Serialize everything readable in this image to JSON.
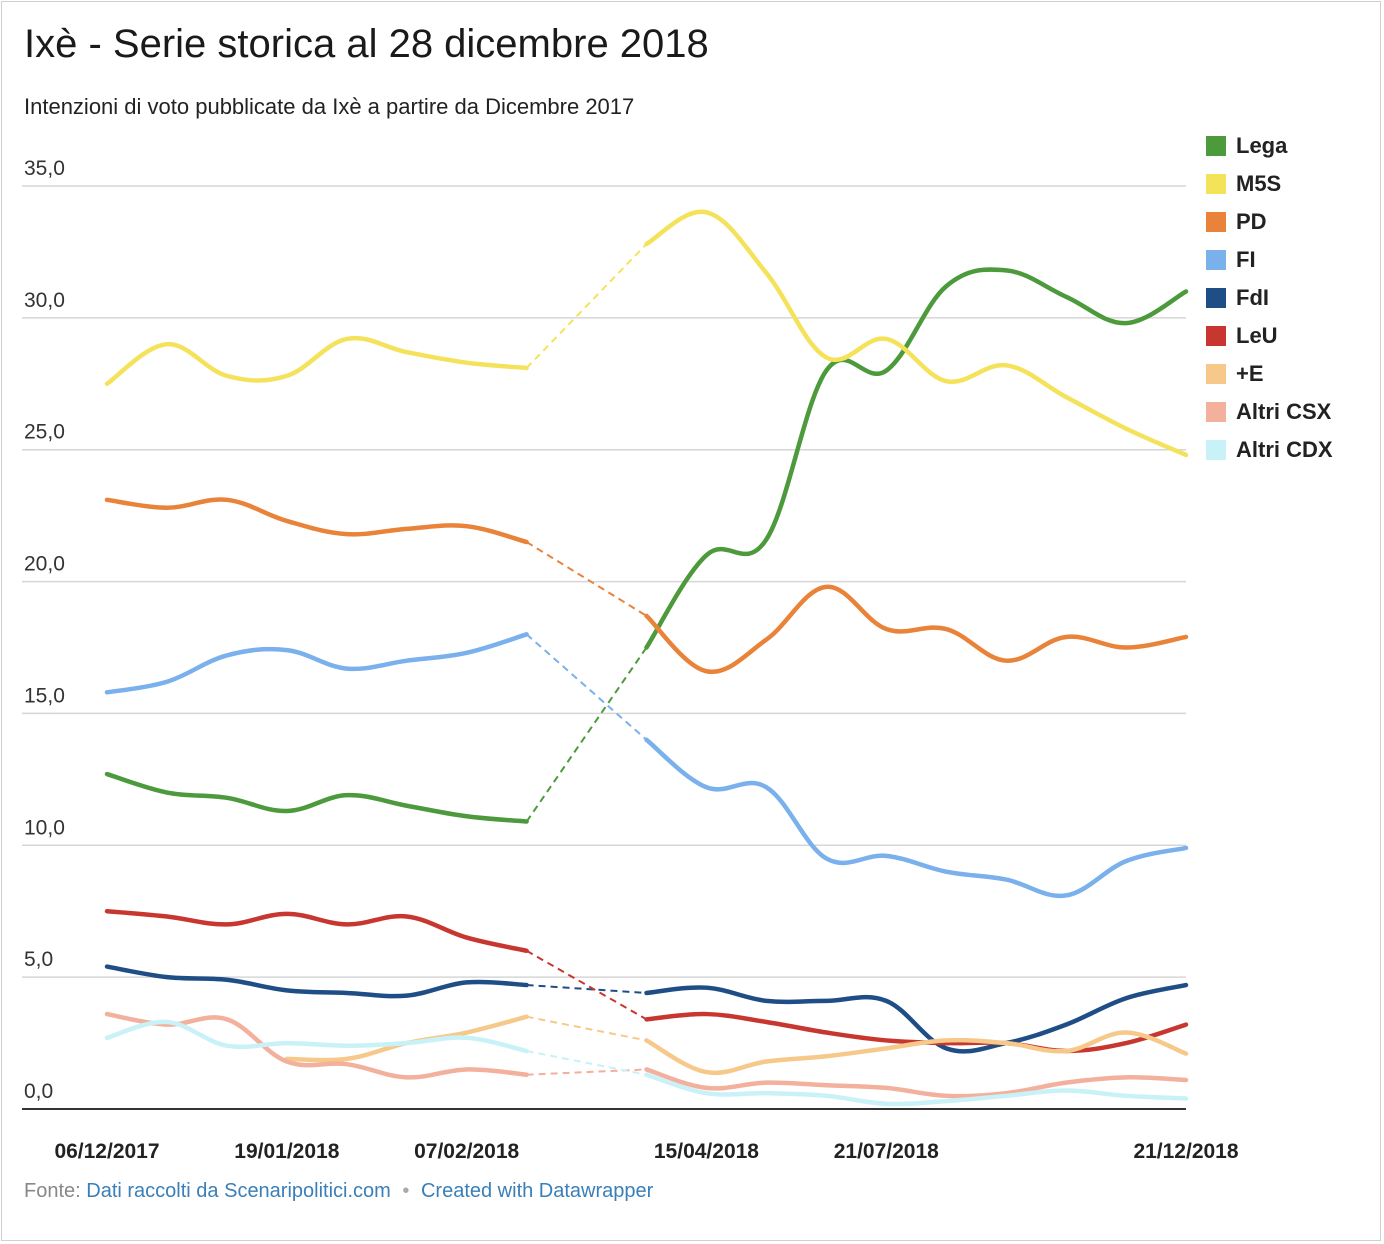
{
  "header": {
    "title": "Ixè - Serie storica al 28 dicembre 2018",
    "subtitle": "Intenzioni di voto pubblicate da Ixè a partire da Dicembre 2017"
  },
  "footer": {
    "source_prefix": "Fonte:",
    "source_link": "Dati raccolti da Scenaripolitici.com",
    "separator": "•",
    "credit": "Created with Datawrapper"
  },
  "chart_data": {
    "type": "line",
    "title": "Ixè - Serie storica al 28 dicembre 2018",
    "subtitle": "Intenzioni di voto pubblicate da Ixè a partire da Dicembre 2017",
    "xlabel": "",
    "ylabel": "",
    "ylim": [
      0,
      35
    ],
    "y_ticks": [
      "0,0",
      "5,0",
      "10,0",
      "15,0",
      "20,0",
      "25,0",
      "30,0",
      "35,0"
    ],
    "x_tick_labels": [
      {
        "label": "06/12/2017",
        "x": 0
      },
      {
        "label": "19/01/2018",
        "x": 3
      },
      {
        "label": "07/02/2018",
        "x": 6
      },
      {
        "label": "15/04/2018",
        "x": 10
      },
      {
        "label": "21/07/2018",
        "x": 13
      },
      {
        "label": "21/12/2018",
        "x": 18
      }
    ],
    "x_range": [
      0,
      18
    ],
    "gap": {
      "from": 7,
      "to": 9
    },
    "legend_position": "top-right",
    "grid": true,
    "series": [
      {
        "name": "Lega",
        "color": "#4c9a3c",
        "x": [
          0,
          1,
          2,
          3,
          4,
          5,
          6,
          7,
          9,
          10,
          11,
          12,
          13,
          14,
          15,
          16,
          17,
          18
        ],
        "values": [
          12.7,
          12.0,
          11.8,
          11.3,
          11.9,
          11.5,
          11.1,
          10.9,
          17.5,
          21.0,
          21.6,
          28.0,
          28.0,
          31.2,
          31.8,
          30.8,
          29.8,
          31.0
        ]
      },
      {
        "name": "M5S",
        "color": "#f5e25b",
        "x": [
          0,
          1,
          2,
          3,
          4,
          5,
          6,
          7,
          9,
          10,
          11,
          12,
          13,
          14,
          15,
          16,
          17,
          18
        ],
        "values": [
          27.5,
          29.0,
          27.8,
          27.8,
          29.2,
          28.7,
          28.3,
          28.1,
          32.8,
          34.0,
          31.7,
          28.5,
          29.2,
          27.6,
          28.2,
          27.0,
          25.8,
          24.8
        ]
      },
      {
        "name": "PD",
        "color": "#e9833a",
        "x": [
          0,
          1,
          2,
          3,
          4,
          5,
          6,
          7,
          9,
          10,
          11,
          12,
          13,
          14,
          15,
          16,
          17,
          18
        ],
        "values": [
          23.1,
          22.8,
          23.1,
          22.3,
          21.8,
          22.0,
          22.1,
          21.5,
          18.7,
          16.6,
          17.8,
          19.8,
          18.2,
          18.2,
          17.0,
          17.9,
          17.5,
          17.9
        ]
      },
      {
        "name": "FI",
        "color": "#7ab0eb",
        "x": [
          0,
          1,
          2,
          3,
          4,
          5,
          6,
          7,
          9,
          10,
          11,
          12,
          13,
          14,
          15,
          16,
          17,
          18
        ],
        "values": [
          15.8,
          16.2,
          17.2,
          17.4,
          16.7,
          17.0,
          17.3,
          18.0,
          14.0,
          12.2,
          12.2,
          9.5,
          9.6,
          9.0,
          8.7,
          8.1,
          9.4,
          9.9
        ]
      },
      {
        "name": "FdI",
        "color": "#1f4e86",
        "x": [
          0,
          1,
          2,
          3,
          4,
          5,
          6,
          7,
          9,
          10,
          11,
          12,
          13,
          14,
          15,
          16,
          17,
          18
        ],
        "values": [
          5.4,
          5.0,
          4.9,
          4.5,
          4.4,
          4.3,
          4.8,
          4.7,
          4.4,
          4.6,
          4.1,
          4.1,
          4.1,
          2.3,
          2.5,
          3.2,
          4.2,
          4.7
        ]
      },
      {
        "name": "LeU",
        "color": "#c8372f",
        "x": [
          0,
          1,
          2,
          3,
          4,
          5,
          6,
          7,
          9,
          10,
          11,
          12,
          13,
          14,
          15,
          16,
          17,
          18
        ],
        "values": [
          7.5,
          7.3,
          7.0,
          7.4,
          7.0,
          7.3,
          6.5,
          6.0,
          3.4,
          3.6,
          3.3,
          2.9,
          2.6,
          2.5,
          2.5,
          2.2,
          2.5,
          3.2
        ]
      },
      {
        "name": "+E",
        "color": "#f6c98a",
        "x": [
          3,
          4,
          5,
          6,
          7,
          9,
          10,
          11,
          12,
          13,
          14,
          15,
          16,
          17,
          18
        ],
        "values": [
          1.9,
          1.9,
          2.5,
          2.9,
          3.5,
          2.6,
          1.4,
          1.8,
          2.0,
          2.3,
          2.6,
          2.5,
          2.2,
          2.9,
          2.1
        ]
      },
      {
        "name": "Altri CSX",
        "color": "#f2b09d",
        "x": [
          0,
          1,
          2,
          3,
          4,
          5,
          6,
          7,
          9,
          10,
          11,
          12,
          13,
          14,
          15,
          16,
          17,
          18
        ],
        "values": [
          3.6,
          3.2,
          3.4,
          1.8,
          1.7,
          1.2,
          1.5,
          1.3,
          1.5,
          0.8,
          1.0,
          0.9,
          0.8,
          0.5,
          0.6,
          1.0,
          1.2,
          1.1
        ]
      },
      {
        "name": "Altri CDX",
        "color": "#c9f1f8",
        "x": [
          0,
          1,
          2,
          3,
          4,
          5,
          6,
          7,
          9,
          10,
          11,
          12,
          13,
          14,
          15,
          16,
          17,
          18
        ],
        "values": [
          2.7,
          3.3,
          2.4,
          2.5,
          2.4,
          2.5,
          2.7,
          2.2,
          1.3,
          0.6,
          0.6,
          0.5,
          0.2,
          0.3,
          0.5,
          0.7,
          0.5,
          0.4
        ]
      }
    ]
  }
}
